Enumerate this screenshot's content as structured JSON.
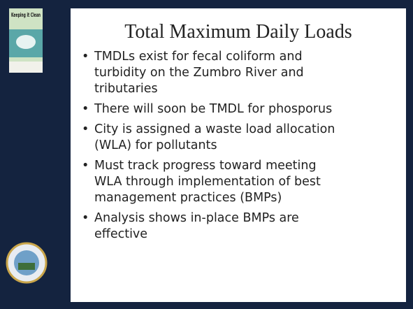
{
  "slide": {
    "title": "Total Maximum Daily Loads",
    "logo_text": "Keeping it Clean",
    "bullets": [
      [
        "TMDLs exist for fecal coliform and",
        "turbidity on the Zumbro River and",
        "tributaries"
      ],
      [
        "There will soon be TMDL for phosporus"
      ],
      [
        "City is assigned a waste load allocation",
        "(WLA) for pollutants"
      ],
      [
        "Must track progress toward meeting",
        "WLA through implementation of best",
        "management practices (BMPs)"
      ],
      [
        "Analysis shows in-place BMPs are",
        "effective"
      ]
    ]
  }
}
